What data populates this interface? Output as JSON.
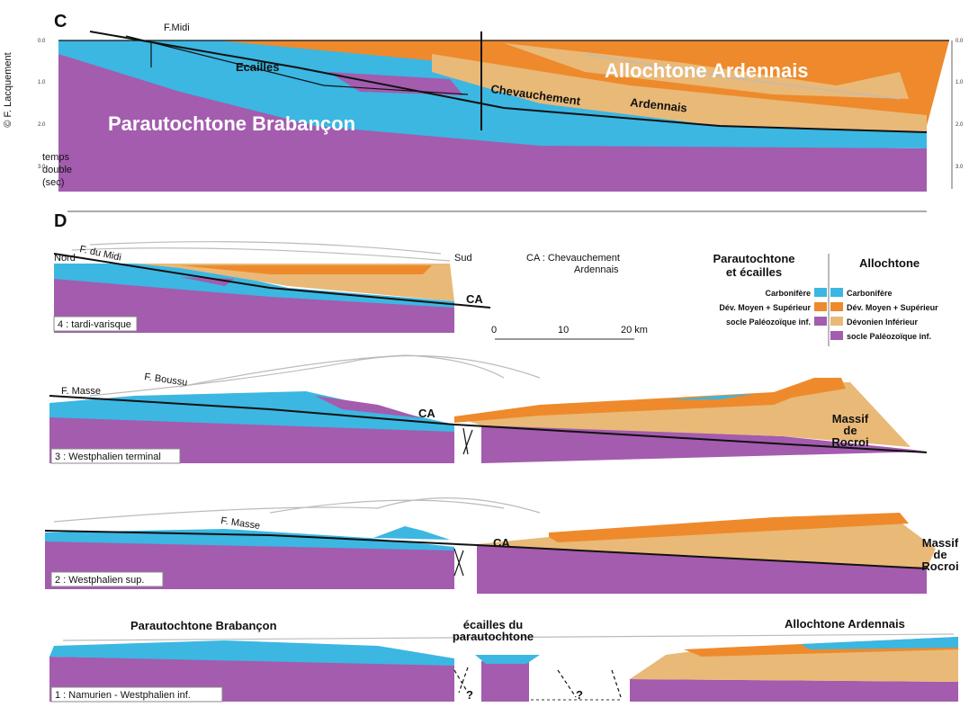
{
  "credit": "© F. Lacquement",
  "section_c": {
    "letter": "C",
    "fault": "F.Midi",
    "ecailles": "Ecailles",
    "allochtone": "Allochtone Ardennais",
    "thrust": [
      "Chevauchement",
      "Ardennais"
    ],
    "parautochtone": "Parautochtone Brabançon",
    "axis_note": [
      "temps",
      "double",
      "(sec)"
    ],
    "left_ticks": [
      "0.0",
      "1.0",
      "2.0",
      "3.0"
    ],
    "right_ticks": [
      "0.0",
      "1.0",
      "2.0",
      "3.0"
    ]
  },
  "section_d": {
    "letter": "D",
    "stage_4": {
      "north": "Nord",
      "fault": "F. du Midi",
      "south": "Sud",
      "ca": "CA",
      "caption": "4 : tardi-varisque"
    },
    "ca_note": [
      "CA : Chevauchement",
      "Ardennais"
    ],
    "scale": [
      "0",
      "10",
      "20 km"
    ],
    "legend": {
      "left_title": [
        "Parautochtone",
        "et écailles"
      ],
      "right_title": "Allochtone",
      "left": [
        "Carbonifère",
        "Dév. Moyen + Supérieur",
        "socle Paléozoïque inf."
      ],
      "right": [
        "Carbonifère",
        "Dév. Moyen + Supérieur",
        "Dévonien Inférieur",
        "socle Paléozoïque inf."
      ]
    },
    "stage_3": {
      "fault_1": "F. Boussu",
      "fault_2": "F. Masse",
      "ca": "CA",
      "massif": [
        "Massif",
        "de",
        "Rocroi"
      ],
      "caption": "3 : Westphalien terminal"
    },
    "stage_2": {
      "fault": "F. Masse",
      "ca": "CA",
      "massif": [
        "Massif",
        "de",
        "Rocroi"
      ],
      "caption": "2 : Westphalien sup."
    },
    "stage_1": {
      "left": "Parautochtone Brabançon",
      "middle": [
        "écailles du",
        "parautochtone"
      ],
      "right": "Allochtone Ardennais",
      "unknown": [
        "?",
        "?"
      ],
      "caption": "1 : Namurien - Westphalien inf."
    }
  }
}
